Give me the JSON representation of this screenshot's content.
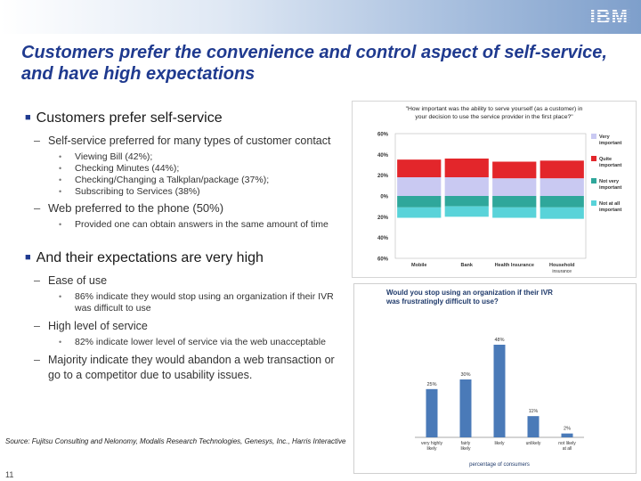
{
  "header": {
    "logo": "IBM"
  },
  "slide": {
    "title": "Customers prefer the convenience and control aspect of self-service, and have high expectations",
    "page_number": "11",
    "source": "Source: Fujitsu Consulting and Nelonomy, Modalis Research Technologies, Genesys, Inc., Harris Interactive"
  },
  "bullets": {
    "b1": "Customers prefer self-service",
    "b1_1": "Self-service preferred for many types of customer contact",
    "b1_1_items": [
      "Viewing Bill (42%);",
      "Checking Minutes (44%);",
      "Checking/Changing a Talkplan/package (37%);",
      "Subscribing to Services (38%)"
    ],
    "b1_2": "Web preferred to the phone (50%)",
    "b1_2_items": [
      "Provided one can obtain answers in the same amount of time"
    ],
    "b2": "And their expectations are very high",
    "b2_1": "Ease of use",
    "b2_1_items": [
      "86% indicate they would stop using an organization if their IVR was difficult to use"
    ],
    "b2_2": "High level of service",
    "b2_2_items": [
      "82% indicate lower level of service via the web unacceptable"
    ],
    "b2_3": "Majority indicate they would abandon a web transaction or go to a competitor due to usability issues."
  },
  "chart_data": [
    {
      "type": "bar",
      "stacked": "diverging",
      "title": "\"How important was the ability to serve yourself (as a customer) in your decision to use the service provider in the first place?\"",
      "categories": [
        "Mobile",
        "Bank",
        "Health Insurance",
        "Household insurance"
      ],
      "y_tick_labels": [
        "60%",
        "40%",
        "20%",
        "0%",
        "20%",
        "40%",
        "60%"
      ],
      "ylim": [
        -60,
        60
      ],
      "series": [
        {
          "name": "Very important",
          "color": "#c9c9f2",
          "values": [
            18,
            18,
            17,
            17
          ]
        },
        {
          "name": "Quite important",
          "color": "#e3262b",
          "values": [
            17,
            18,
            16,
            17
          ]
        },
        {
          "name": "Not very important",
          "color": "#2fa79b",
          "values": [
            -11,
            -10,
            -11,
            -11
          ]
        },
        {
          "name": "Not at all important",
          "color": "#59d3d9",
          "values": [
            -10,
            -10,
            -10,
            -11
          ]
        }
      ],
      "grid": false,
      "legend": "right"
    },
    {
      "type": "bar",
      "title": "Would you stop using an organization if their IVR was frustratingly difficult to use?",
      "categories": [
        "very highly likely",
        "fairly likely",
        "likely",
        "unlikely",
        "not likely at all"
      ],
      "values": [
        25,
        30,
        48,
        11,
        2
      ],
      "value_labels": [
        "25%",
        "30%",
        "48%",
        "11%",
        "2%"
      ],
      "xlabel": "percentage of consumers",
      "ylim": [
        0,
        60
      ],
      "color": "#4a7ab8",
      "grid": false
    }
  ]
}
